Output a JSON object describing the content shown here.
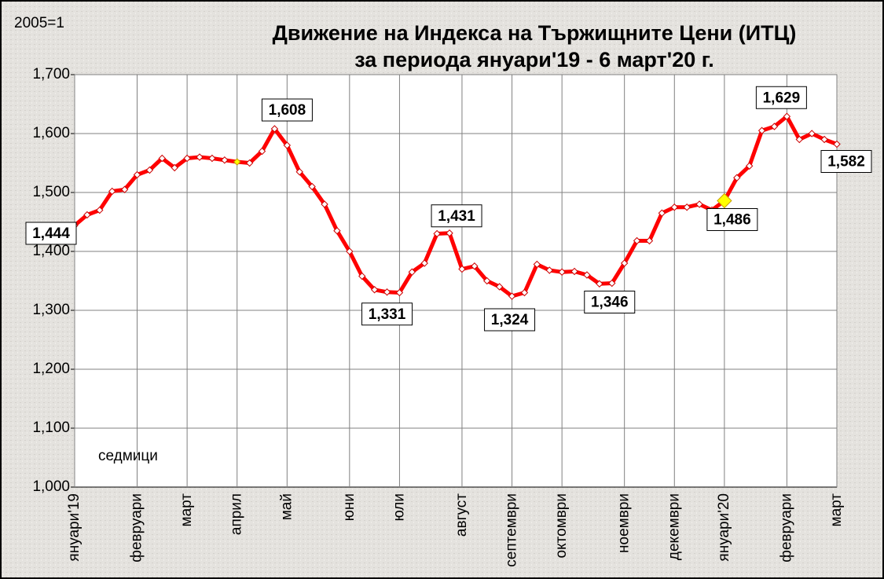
{
  "chart_data": {
    "type": "line",
    "title": [
      "Движение на Индекса на Тържищните Цени (ИТЦ)",
      "за периода януари'19 - 6 март'20 г."
    ],
    "subtitle": "2005=1",
    "x_label": "седмици",
    "categories": [
      "януари'19",
      null,
      null,
      null,
      null,
      "февруари",
      null,
      null,
      null,
      "март",
      null,
      null,
      null,
      "април",
      null,
      null,
      null,
      "май",
      null,
      null,
      null,
      null,
      "юни",
      null,
      null,
      null,
      "юли",
      null,
      null,
      null,
      null,
      "август",
      null,
      null,
      null,
      "септември",
      null,
      null,
      null,
      "октомври",
      null,
      null,
      null,
      null,
      "ноември",
      null,
      null,
      null,
      "декември",
      null,
      null,
      null,
      "януари'20",
      null,
      null,
      null,
      null,
      "февруари",
      null,
      null,
      null,
      "март"
    ],
    "series": [
      {
        "name": null,
        "color": "#ff0000",
        "values": [
          1.444,
          1.462,
          1.47,
          1.502,
          1.505,
          1.53,
          1.538,
          1.558,
          1.542,
          1.558,
          1.56,
          1.558,
          1.555,
          1.552,
          1.55,
          1.57,
          1.608,
          1.58,
          1.535,
          1.51,
          1.48,
          1.435,
          1.4,
          1.358,
          1.335,
          1.331,
          1.33,
          1.365,
          1.38,
          1.43,
          1.431,
          1.37,
          1.375,
          1.35,
          1.34,
          1.324,
          1.33,
          1.378,
          1.368,
          1.365,
          1.366,
          1.36,
          1.345,
          1.346,
          1.38,
          1.418,
          1.418,
          1.465,
          1.475,
          1.475,
          1.48,
          1.47,
          1.486,
          1.525,
          1.545,
          1.605,
          1.612,
          1.629,
          1.59,
          1.6,
          1.59,
          1.582
        ],
        "value_labels": [
          "1,444",
          null,
          null,
          null,
          null,
          null,
          null,
          null,
          null,
          null,
          null,
          null,
          null,
          null,
          null,
          null,
          "1,608",
          null,
          null,
          null,
          null,
          null,
          null,
          null,
          null,
          "1,331",
          null,
          null,
          null,
          null,
          "1,431",
          null,
          null,
          null,
          null,
          "1,324",
          null,
          null,
          null,
          null,
          null,
          null,
          null,
          "1,346",
          null,
          null,
          null,
          null,
          null,
          null,
          null,
          null,
          "1,486",
          null,
          null,
          null,
          null,
          "1,629",
          null,
          null,
          null,
          "1,582"
        ]
      }
    ],
    "ylim": [
      1.0,
      1.7
    ],
    "yticks": [
      {
        "value": 1.0,
        "label": "1,000"
      },
      {
        "value": 1.1,
        "label": "1,100"
      },
      {
        "value": 1.2,
        "label": "1,200"
      },
      {
        "value": 1.3,
        "label": "1,300"
      },
      {
        "value": 1.4,
        "label": "1,400"
      },
      {
        "value": 1.5,
        "label": "1,500"
      },
      {
        "value": 1.6,
        "label": "1,600"
      },
      {
        "value": 1.7,
        "label": "1,700"
      }
    ],
    "grid": true
  }
}
